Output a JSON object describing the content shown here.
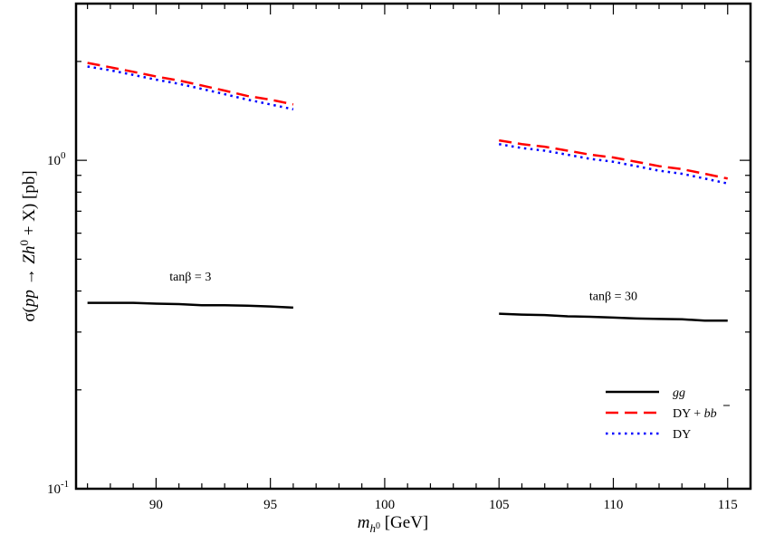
{
  "chart_data": {
    "type": "line",
    "title": "",
    "xlabel": {
      "main": "m",
      "sub": "h",
      "subsup": "0",
      "unit": "[GeV]"
    },
    "ylabel": {
      "sigma": "σ",
      "open": "(",
      "pp": "pp",
      "arrow": "→",
      "zh": "Zh",
      "sup": "0",
      "plusx": "+ X",
      "close": ")",
      "unit": "[pb]"
    },
    "x_range": [
      86.5,
      116.0
    ],
    "y_range": [
      0.1,
      3.0
    ],
    "y_scale": "log",
    "x_ticks": [
      {
        "value": 90,
        "label": "90"
      },
      {
        "value": 95,
        "label": "95"
      },
      {
        "value": 100,
        "label": "100"
      },
      {
        "value": 105,
        "label": "105"
      },
      {
        "value": 110,
        "label": "110"
      },
      {
        "value": 115,
        "label": "115"
      }
    ],
    "y_ticks": [
      {
        "value": 0.1,
        "base": "10",
        "exp": "-1"
      },
      {
        "value": 1.0,
        "base": "10",
        "exp": "0"
      }
    ],
    "series": [
      {
        "name": "gg",
        "color": "#000000",
        "style": "solid",
        "segments": [
          {
            "x": [
              87,
              88,
              89,
              90,
              91,
              92,
              93,
              94,
              95,
              96
            ],
            "y": [
              0.368,
              0.368,
              0.368,
              0.366,
              0.365,
              0.362,
              0.362,
              0.361,
              0.359,
              0.356
            ]
          },
          {
            "x": [
              105,
              106,
              107,
              108,
              109,
              110,
              111,
              112,
              113,
              114,
              115
            ],
            "y": [
              0.341,
              0.339,
              0.338,
              0.335,
              0.334,
              0.332,
              0.33,
              0.329,
              0.328,
              0.325,
              0.325
            ]
          }
        ]
      },
      {
        "name": "DY + bb̄",
        "color": "#ff0000",
        "style": "dashed",
        "segments": [
          {
            "x": [
              87,
              88,
              89,
              90,
              91,
              92,
              93,
              94,
              95,
              96
            ],
            "y": [
              1.98,
              1.92,
              1.86,
              1.8,
              1.75,
              1.69,
              1.63,
              1.57,
              1.53,
              1.48
            ]
          },
          {
            "x": [
              105,
              106,
              107,
              108,
              109,
              110,
              111,
              112,
              113,
              114,
              115
            ],
            "y": [
              1.15,
              1.12,
              1.1,
              1.07,
              1.04,
              1.02,
              0.99,
              0.96,
              0.94,
              0.91,
              0.88
            ]
          }
        ]
      },
      {
        "name": "DY",
        "color": "#0000ff",
        "style": "dotted",
        "segments": [
          {
            "x": [
              87,
              88,
              89,
              90,
              91,
              92,
              93,
              94,
              95,
              96
            ],
            "y": [
              1.93,
              1.88,
              1.82,
              1.76,
              1.71,
              1.65,
              1.59,
              1.53,
              1.48,
              1.43
            ]
          },
          {
            "x": [
              105,
              106,
              107,
              108,
              109,
              110,
              111,
              112,
              113,
              114,
              115
            ],
            "y": [
              1.12,
              1.09,
              1.07,
              1.04,
              1.01,
              0.99,
              0.96,
              0.93,
              0.91,
              0.88,
              0.85
            ]
          }
        ]
      }
    ],
    "legend": {
      "placement": "bottom-right",
      "entries": [
        {
          "text": "gg",
          "style": "italic"
        },
        {
          "text_pre": "DY + ",
          "text_italic": "b",
          "text_italic_bar": "b"
        },
        {
          "text": "DY"
        }
      ]
    },
    "annotations": [
      {
        "text_pre": "tan",
        "text_beta": "β",
        "text_post": " = 3",
        "x": 91.5,
        "y": 0.43
      },
      {
        "text_pre": "tan",
        "text_beta": "β",
        "text_post": " = 30",
        "x": 110.0,
        "y": 0.375
      }
    ]
  }
}
